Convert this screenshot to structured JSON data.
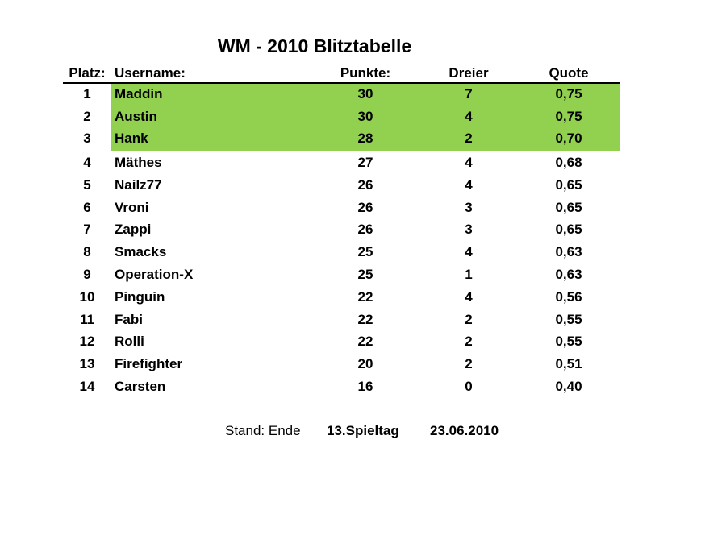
{
  "title": "WM - 2010 Blitztabelle",
  "header": {
    "platz": "Platz:",
    "username": "Username:",
    "punkte": "Punkte:",
    "dreier": "Dreier",
    "quote": "Quote"
  },
  "colors": {
    "highlight": "#92d050"
  },
  "rows": [
    {
      "platz": "1",
      "username": "Maddin",
      "punkte": "30",
      "dreier": "7",
      "quote": "0,75"
    },
    {
      "platz": "2",
      "username": "Austin",
      "punkte": "30",
      "dreier": "4",
      "quote": "0,75"
    },
    {
      "platz": "3",
      "username": "Hank",
      "punkte": "28",
      "dreier": "2",
      "quote": "0,70"
    },
    {
      "platz": "4",
      "username": "Mäthes",
      "punkte": "27",
      "dreier": "4",
      "quote": "0,68"
    },
    {
      "platz": "5",
      "username": "Nailz77",
      "punkte": "26",
      "dreier": "4",
      "quote": "0,65"
    },
    {
      "platz": "6",
      "username": "Vroni",
      "punkte": "26",
      "dreier": "3",
      "quote": "0,65"
    },
    {
      "platz": "7",
      "username": "Zappi",
      "punkte": "26",
      "dreier": "3",
      "quote": "0,65"
    },
    {
      "platz": "8",
      "username": "Smacks",
      "punkte": "25",
      "dreier": "4",
      "quote": "0,63"
    },
    {
      "platz": "9",
      "username": "Operation-X",
      "punkte": "25",
      "dreier": "1",
      "quote": "0,63"
    },
    {
      "platz": "10",
      "username": "Pinguin",
      "punkte": "22",
      "dreier": "4",
      "quote": "0,56"
    },
    {
      "platz": "11",
      "username": "Fabi",
      "punkte": "22",
      "dreier": "2",
      "quote": "0,55"
    },
    {
      "platz": "12",
      "username": "Rolli",
      "punkte": "22",
      "dreier": "2",
      "quote": "0,55"
    },
    {
      "platz": "13",
      "username": "Firefighter",
      "punkte": "20",
      "dreier": "2",
      "quote": "0,51"
    },
    {
      "platz": "14",
      "username": "Carsten",
      "punkte": "16",
      "dreier": "0",
      "quote": "0,40"
    }
  ],
  "footer": {
    "label": "Stand: Ende",
    "spieltag": "13.Spieltag",
    "date": "23.06.2010"
  }
}
